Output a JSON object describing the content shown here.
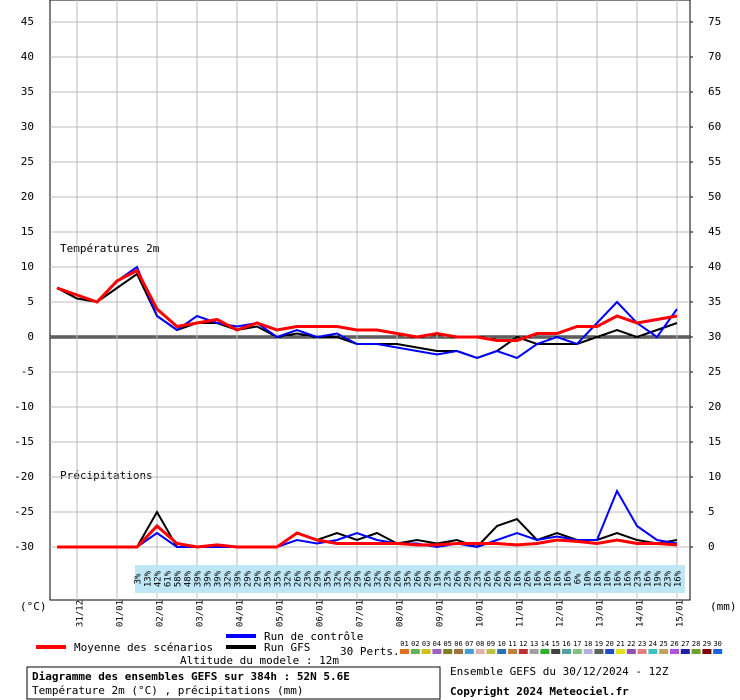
{
  "chart_data": {
    "type": "line",
    "title": "Diagramme des ensembles GEFS sur 384h : 52N 5.6E",
    "subtitle": "Température 2m (°C) , précipitations (mm)",
    "run_info": "Ensemble GEFS du 30/12/2024 - 12Z",
    "copyright": "Copyright 2024 Meteociel.fr",
    "altitude": "Altitude du modele : 12m",
    "annotations": [
      "Températures 2m",
      "Précipitations"
    ],
    "ylabel": "(°C)",
    "y2label": "(mm)",
    "members_label": "30 Perts.",
    "categories": [
      null,
      "31/12",
      null,
      "01/01",
      null,
      "02/01",
      null,
      "03/01",
      null,
      "04/01",
      null,
      "05/01",
      null,
      "06/01",
      null,
      "07/01",
      null,
      "08/01",
      null,
      "09/01",
      null,
      "10/01",
      null,
      "11/01",
      null,
      "12/01",
      null,
      "13/01",
      null,
      "14/01",
      null,
      "15/01"
    ],
    "ylim": [
      -30,
      45
    ],
    "yticks": [
      -30,
      -25,
      -20,
      -15,
      -10,
      -5,
      0,
      5,
      10,
      15,
      20,
      25,
      30,
      35,
      40,
      45
    ],
    "y2lim": [
      0,
      75
    ],
    "y2ticks": [
      0,
      5,
      10,
      15,
      20,
      25,
      30,
      35,
      40,
      45,
      50,
      55,
      60,
      65,
      70,
      75
    ],
    "grid": true,
    "series": [
      {
        "name": "Moyenne des scénarios",
        "color": "#ff0000",
        "values": [
          7,
          6,
          5,
          8,
          9.5,
          4,
          1.5,
          2,
          2.5,
          1,
          2,
          1,
          1.5,
          1.5,
          1.5,
          1,
          1,
          0.5,
          0,
          0.5,
          0,
          0,
          -0.5,
          -0.5,
          0.5,
          0.5,
          1.5,
          1.5,
          3,
          2,
          2.5,
          3
        ]
      },
      {
        "name": "Run de contrôle",
        "color": "#0000ff",
        "values": [
          7,
          6,
          5,
          8,
          10,
          3,
          1,
          3,
          2,
          1.5,
          2,
          0,
          1,
          0,
          0.5,
          -1,
          -1,
          -1.5,
          -2,
          -2.5,
          -2,
          -3,
          -2,
          -3,
          -1,
          0,
          -1,
          2,
          5,
          2,
          0,
          4
        ]
      },
      {
        "name": "Run GFS",
        "color": "#000000",
        "values": [
          7,
          5.5,
          5,
          7,
          9,
          3,
          1,
          2,
          2,
          1,
          1.5,
          0,
          0.5,
          0,
          0,
          -1,
          -1,
          -1,
          -1.5,
          -2,
          -2,
          -3,
          -2,
          0,
          -1,
          -1,
          -1,
          0,
          1,
          0,
          1,
          2
        ]
      },
      {
        "color": "#ff0000",
        "axis": "y2",
        "values": [
          0,
          0,
          0,
          0,
          0,
          3,
          0.5,
          0,
          0.3,
          0,
          0,
          0,
          2,
          1,
          0.5,
          0.5,
          0.5,
          0.5,
          0.3,
          0.3,
          0.5,
          0.5,
          0.5,
          0.3,
          0.5,
          1,
          0.8,
          0.5,
          1,
          0.5,
          0.5,
          0.3
        ]
      },
      {
        "color": "#0000ff",
        "axis": "y2",
        "values": [
          0,
          0,
          0,
          0,
          0,
          2,
          0,
          0,
          0,
          0,
          0,
          0,
          1,
          0.5,
          1,
          2,
          1,
          0.5,
          0.5,
          0,
          0.5,
          0,
          1,
          2,
          1,
          1.5,
          1,
          1,
          8,
          3,
          1,
          0.5
        ]
      },
      {
        "color": "#000000",
        "axis": "y2",
        "values": [
          0,
          0,
          0,
          0,
          0,
          5,
          0,
          0,
          0,
          0,
          0,
          0,
          2,
          1,
          2,
          1,
          2,
          0.5,
          1,
          0.5,
          1,
          0,
          3,
          4,
          1,
          2,
          1,
          1,
          2,
          1,
          0.5,
          1
        ]
      }
    ],
    "members": [
      {
        "name": "01",
        "color": "#e07020"
      },
      {
        "name": "02",
        "color": "#60b060"
      },
      {
        "name": "03",
        "color": "#d0c020"
      },
      {
        "name": "04",
        "color": "#a060c0"
      },
      {
        "name": "05",
        "color": "#808020"
      },
      {
        "name": "06",
        "color": "#a07040"
      },
      {
        "name": "07",
        "color": "#40a0d0"
      },
      {
        "name": "08",
        "color": "#e0b0b0"
      },
      {
        "name": "09",
        "color": "#c0c040"
      },
      {
        "name": "10",
        "color": "#3070b0"
      },
      {
        "name": "11",
        "color": "#c08040"
      },
      {
        "name": "12",
        "color": "#c03030"
      },
      {
        "name": "13",
        "color": "#a0a0a0"
      },
      {
        "name": "14",
        "color": "#30b030"
      },
      {
        "name": "15",
        "color": "#404040"
      },
      {
        "name": "16",
        "color": "#50a0a0"
      },
      {
        "name": "17",
        "color": "#80c080"
      },
      {
        "name": "18",
        "color": "#b0b0e0"
      },
      {
        "name": "19",
        "color": "#606060"
      },
      {
        "name": "20",
        "color": "#2050c0"
      },
      {
        "name": "21",
        "color": "#e0e020"
      },
      {
        "name": "22",
        "color": "#9050b0"
      },
      {
        "name": "23",
        "color": "#e08080"
      },
      {
        "name": "24",
        "color": "#40c0c0"
      },
      {
        "name": "25",
        "color": "#c0a060"
      },
      {
        "name": "26",
        "color": "#b050e0"
      },
      {
        "name": "27",
        "color": "#2020a0"
      },
      {
        "name": "28",
        "color": "#70a030"
      },
      {
        "name": "29",
        "color": "#800000"
      },
      {
        "name": "30",
        "color": "#2060e0"
      }
    ],
    "probability_labels": [
      "3%",
      "13%",
      "42%",
      "61%",
      "58%",
      "48%",
      "39%",
      "39%",
      "39%",
      "32%",
      "39%",
      "29%",
      "29%",
      "35%",
      "35%",
      "32%",
      "26%",
      "23%",
      "29%",
      "35%",
      "32%",
      "32%",
      "29%",
      "26%",
      "32%",
      "29%",
      "26%",
      "35%",
      "26%",
      "29%",
      "19%",
      "23%",
      "26%",
      "29%",
      "23%",
      "26%",
      "26%",
      "26%",
      "16%",
      "26%",
      "16%",
      "16%",
      "16%",
      "16%",
      "6%",
      "10%",
      "16%",
      "10%",
      "16%",
      "16%",
      "23%",
      "16%",
      "19%",
      "23%",
      "16%"
    ]
  }
}
